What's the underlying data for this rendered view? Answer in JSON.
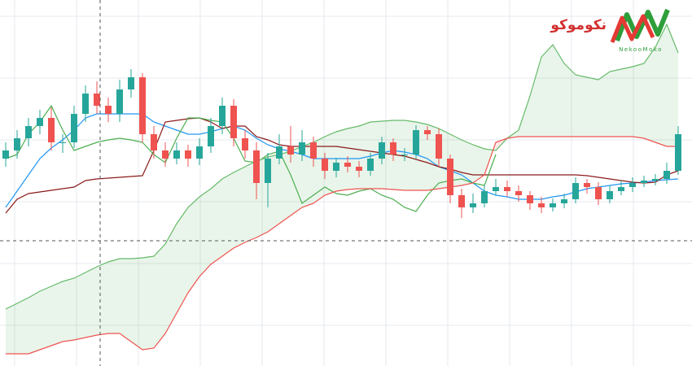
{
  "chart_data": {
    "type": "candlestick",
    "logo": {
      "text": "نکوموکو",
      "subtext": "NekooMoko"
    },
    "ylim": [
      0,
      450
    ],
    "grid": true,
    "up_color": "#26a69a",
    "down_color": "#ef5350",
    "open": [
      255,
      265,
      280,
      295,
      305,
      275,
      275,
      310,
      335,
      320,
      310,
      340,
      355,
      285,
      265,
      255,
      265,
      255,
      270,
      295,
      320,
      280,
      265,
      225,
      255,
      270,
      260,
      275,
      255,
      240,
      250,
      245,
      240,
      255,
      275,
      260,
      260,
      290,
      285,
      255,
      210,
      195,
      200,
      215,
      220,
      215,
      210,
      200,
      195,
      200,
      205,
      225,
      220,
      205,
      215,
      220,
      225,
      228,
      230,
      240
    ],
    "high": [
      275,
      290,
      305,
      315,
      318,
      285,
      320,
      345,
      350,
      330,
      352,
      365,
      360,
      295,
      275,
      275,
      272,
      280,
      305,
      330,
      328,
      290,
      275,
      262,
      285,
      295,
      290,
      282,
      262,
      256,
      258,
      252,
      262,
      282,
      280,
      268,
      296,
      295,
      292,
      260,
      218,
      212,
      222,
      230,
      228,
      222,
      215,
      208,
      206,
      212,
      232,
      230,
      226,
      222,
      228,
      232,
      234,
      236,
      250,
      295
    ],
    "low": [
      245,
      255,
      270,
      285,
      265,
      262,
      268,
      300,
      310,
      300,
      300,
      330,
      275,
      255,
      245,
      248,
      245,
      247,
      262,
      285,
      270,
      255,
      205,
      195,
      248,
      250,
      252,
      245,
      230,
      232,
      238,
      232,
      234,
      248,
      252,
      252,
      255,
      278,
      245,
      200,
      182,
      188,
      195,
      210,
      208,
      202,
      192,
      188,
      190,
      194,
      200,
      212,
      198,
      200,
      210,
      214,
      220,
      222,
      224,
      235
    ],
    "close": [
      265,
      280,
      295,
      305,
      275,
      275,
      310,
      335,
      320,
      310,
      340,
      355,
      285,
      265,
      255,
      265,
      255,
      270,
      295,
      320,
      280,
      265,
      225,
      255,
      270,
      260,
      275,
      255,
      240,
      250,
      245,
      240,
      255,
      275,
      260,
      260,
      290,
      285,
      255,
      210,
      195,
      200,
      215,
      220,
      215,
      210,
      200,
      195,
      200,
      205,
      225,
      220,
      205,
      215,
      220,
      225,
      228,
      230,
      240,
      285
    ],
    "series": [
      {
        "color": "#2196f3",
        "values": [
          195,
          215,
          235,
          255,
          268,
          278,
          290,
          305,
          310,
          310,
          310,
          310,
          310,
          300,
          295,
          290,
          285,
          285,
          288,
          292,
          295,
          290,
          280,
          272,
          267,
          264,
          260,
          255,
          255,
          255,
          255,
          255,
          258,
          262,
          265,
          263,
          260,
          255,
          245,
          240,
          235,
          225,
          215,
          210,
          208,
          205,
          205,
          205,
          208,
          210,
          214,
          218,
          220,
          222,
          224,
          225,
          226,
          228,
          229,
          230
        ]
      },
      {
        "color": "#8b1a1a",
        "values": [
          188,
          205,
          212,
          214,
          216,
          218,
          220,
          228,
          230,
          231,
          232,
          233,
          234,
          265,
          300,
          302,
          304,
          305,
          300,
          292,
          295,
          295,
          282,
          278,
          272,
          270,
          270,
          270,
          270,
          270,
          268,
          266,
          264,
          262,
          260,
          258,
          254,
          250,
          245,
          242,
          238,
          235,
          235,
          235,
          235,
          235,
          235,
          235,
          235,
          235,
          235,
          234,
          232,
          230,
          228,
          226,
          225,
          226,
          235,
          240
        ]
      },
      {
        "color": "#4caf50",
        "values": [
          255,
          260,
          285,
          300,
          320,
          290,
          265,
          270,
          275,
          278,
          280,
          278,
          275,
          260,
          250,
          280,
          305,
          305,
          302,
          300,
          280,
          252,
          250,
          260,
          264,
          235,
          200,
          210,
          220,
          212,
          210,
          215,
          218,
          210,
          205,
          195,
          190,
          210,
          225,
          228,
          230,
          225,
          222,
          260,
          null,
          null,
          null,
          null,
          null,
          null,
          null,
          null,
          null,
          null,
          null,
          null,
          null,
          null,
          null,
          null
        ]
      },
      {
        "color": "#66bb6a",
        "values": [
          70,
          77,
          84,
          92,
          98,
          104,
          108,
          115,
          122,
          128,
          132,
          132,
          133,
          135,
          150,
          175,
          195,
          208,
          218,
          230,
          238,
          245,
          252,
          257,
          260,
          264,
          270,
          275,
          282,
          288,
          292,
          295,
          300,
          301,
          302,
          302,
          300,
          297,
          292,
          285,
          278,
          272,
          267,
          265,
          280,
          290,
          332,
          380,
          395,
          372,
          358,
          355,
          352,
          362,
          365,
          368,
          372,
          392,
          420,
          385
        ]
      },
      {
        "color": "#ef5350",
        "values": [
          15,
          15,
          15,
          20,
          25,
          30,
          32,
          35,
          38,
          40,
          40,
          30,
          20,
          22,
          40,
          65,
          90,
          110,
          125,
          135,
          145,
          152,
          158,
          165,
          175,
          185,
          195,
          200,
          210,
          215,
          217,
          218,
          218,
          218,
          217,
          216,
          216,
          216,
          218,
          220,
          222,
          225,
          235,
          275,
          280,
          282,
          282,
          282,
          282,
          282,
          282,
          282,
          282,
          282,
          282,
          282,
          280,
          275,
          270,
          270
        ]
      }
    ]
  }
}
